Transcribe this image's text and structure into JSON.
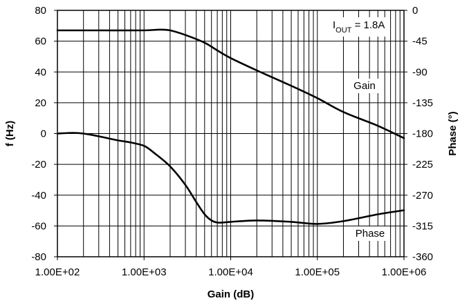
{
  "chart_data": {
    "type": "line",
    "xlabel": "Gain (dB)",
    "ylabel": "f (Hz)",
    "y2label": "Phase (°)",
    "xscale": "log",
    "xlim": [
      100,
      1000000
    ],
    "ylim": [
      -80,
      80
    ],
    "y2lim": [
      -360,
      0
    ],
    "grid": true,
    "x_ticks": [
      "1.00E+02",
      "1.00E+03",
      "1.00E+04",
      "1.00E+05",
      "1.00E+06"
    ],
    "y_ticks": [
      "-80",
      "-60",
      "-40",
      "-20",
      "0",
      "20",
      "40",
      "60",
      "80"
    ],
    "y2_ticks": [
      "-360",
      "-315",
      "-270",
      "-225",
      "-180",
      "-135",
      "-90",
      "-45",
      "0"
    ],
    "annotation": {
      "main": "I",
      "sub": "OUT",
      "rest": " = 1.8A"
    },
    "series": [
      {
        "name": "Gain",
        "axis": "left",
        "x": [
          100,
          300,
          1000,
          1500,
          2000,
          3000,
          5000,
          7000,
          10000,
          20000,
          50000,
          100000,
          200000,
          500000,
          1000000
        ],
        "values": [
          67,
          67,
          67,
          67.5,
          67,
          64,
          59,
          54,
          49,
          41,
          31,
          23,
          14,
          5,
          -3
        ]
      },
      {
        "name": "Phase",
        "axis": "right",
        "x": [
          100,
          150,
          200,
          300,
          500,
          700,
          1000,
          1300,
          2000,
          3000,
          4000,
          5000,
          6000,
          7000,
          8000,
          10000,
          20000,
          50000,
          100000,
          200000,
          500000,
          1000000
        ],
        "values": [
          -180,
          -179,
          -180,
          -184,
          -190,
          -193,
          -198,
          -208,
          -228,
          -255,
          -280,
          -298,
          -307,
          -310,
          -310,
          -309,
          -307,
          -309,
          -312,
          -308,
          -298,
          -292
        ]
      }
    ]
  }
}
